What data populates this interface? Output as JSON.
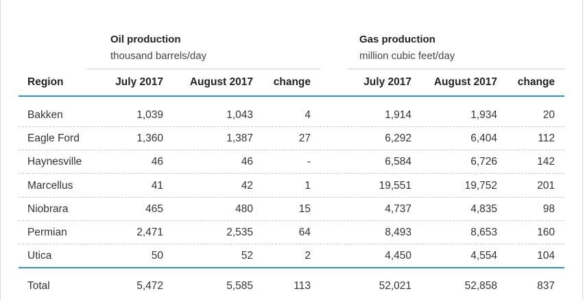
{
  "oil": {
    "title": "Oil production",
    "unit": "thousand barrels/day"
  },
  "gas": {
    "title": "Gas production",
    "unit": "million cubic feet/day"
  },
  "headers": {
    "region": "Region",
    "oil_july": "July 2017",
    "oil_aug": "August 2017",
    "oil_change": "change",
    "gas_july": "July 2017",
    "gas_aug": "August 2017",
    "gas_change": "change"
  },
  "rows": [
    {
      "region": "Bakken",
      "oil_july": "1,039",
      "oil_aug": "1,043",
      "oil_change": "4",
      "gas_july": "1,914",
      "gas_aug": "1,934",
      "gas_change": "20"
    },
    {
      "region": "Eagle Ford",
      "oil_july": "1,360",
      "oil_aug": "1,387",
      "oil_change": "27",
      "gas_july": "6,292",
      "gas_aug": "6,404",
      "gas_change": "112"
    },
    {
      "region": "Haynesville",
      "oil_july": "46",
      "oil_aug": "46",
      "oil_change": "-",
      "gas_july": "6,584",
      "gas_aug": "6,726",
      "gas_change": "142"
    },
    {
      "region": "Marcellus",
      "oil_july": "41",
      "oil_aug": "42",
      "oil_change": "1",
      "gas_july": "19,551",
      "gas_aug": "19,752",
      "gas_change": "201"
    },
    {
      "region": "Niobrara",
      "oil_july": "465",
      "oil_aug": "480",
      "oil_change": "15",
      "gas_july": "4,737",
      "gas_aug": "4,835",
      "gas_change": "98"
    },
    {
      "region": "Permian",
      "oil_july": "2,471",
      "oil_aug": "2,535",
      "oil_change": "64",
      "gas_july": "8,493",
      "gas_aug": "8,653",
      "gas_change": "160"
    },
    {
      "region": "Utica",
      "oil_july": "50",
      "oil_aug": "52",
      "oil_change": "2",
      "gas_july": "4,450",
      "gas_aug": "4,554",
      "gas_change": "104"
    }
  ],
  "total": {
    "region": "Total",
    "oil_july": "5,472",
    "oil_aug": "5,585",
    "oil_change": "113",
    "gas_july": "52,021",
    "gas_aug": "52,858",
    "gas_change": "837"
  }
}
